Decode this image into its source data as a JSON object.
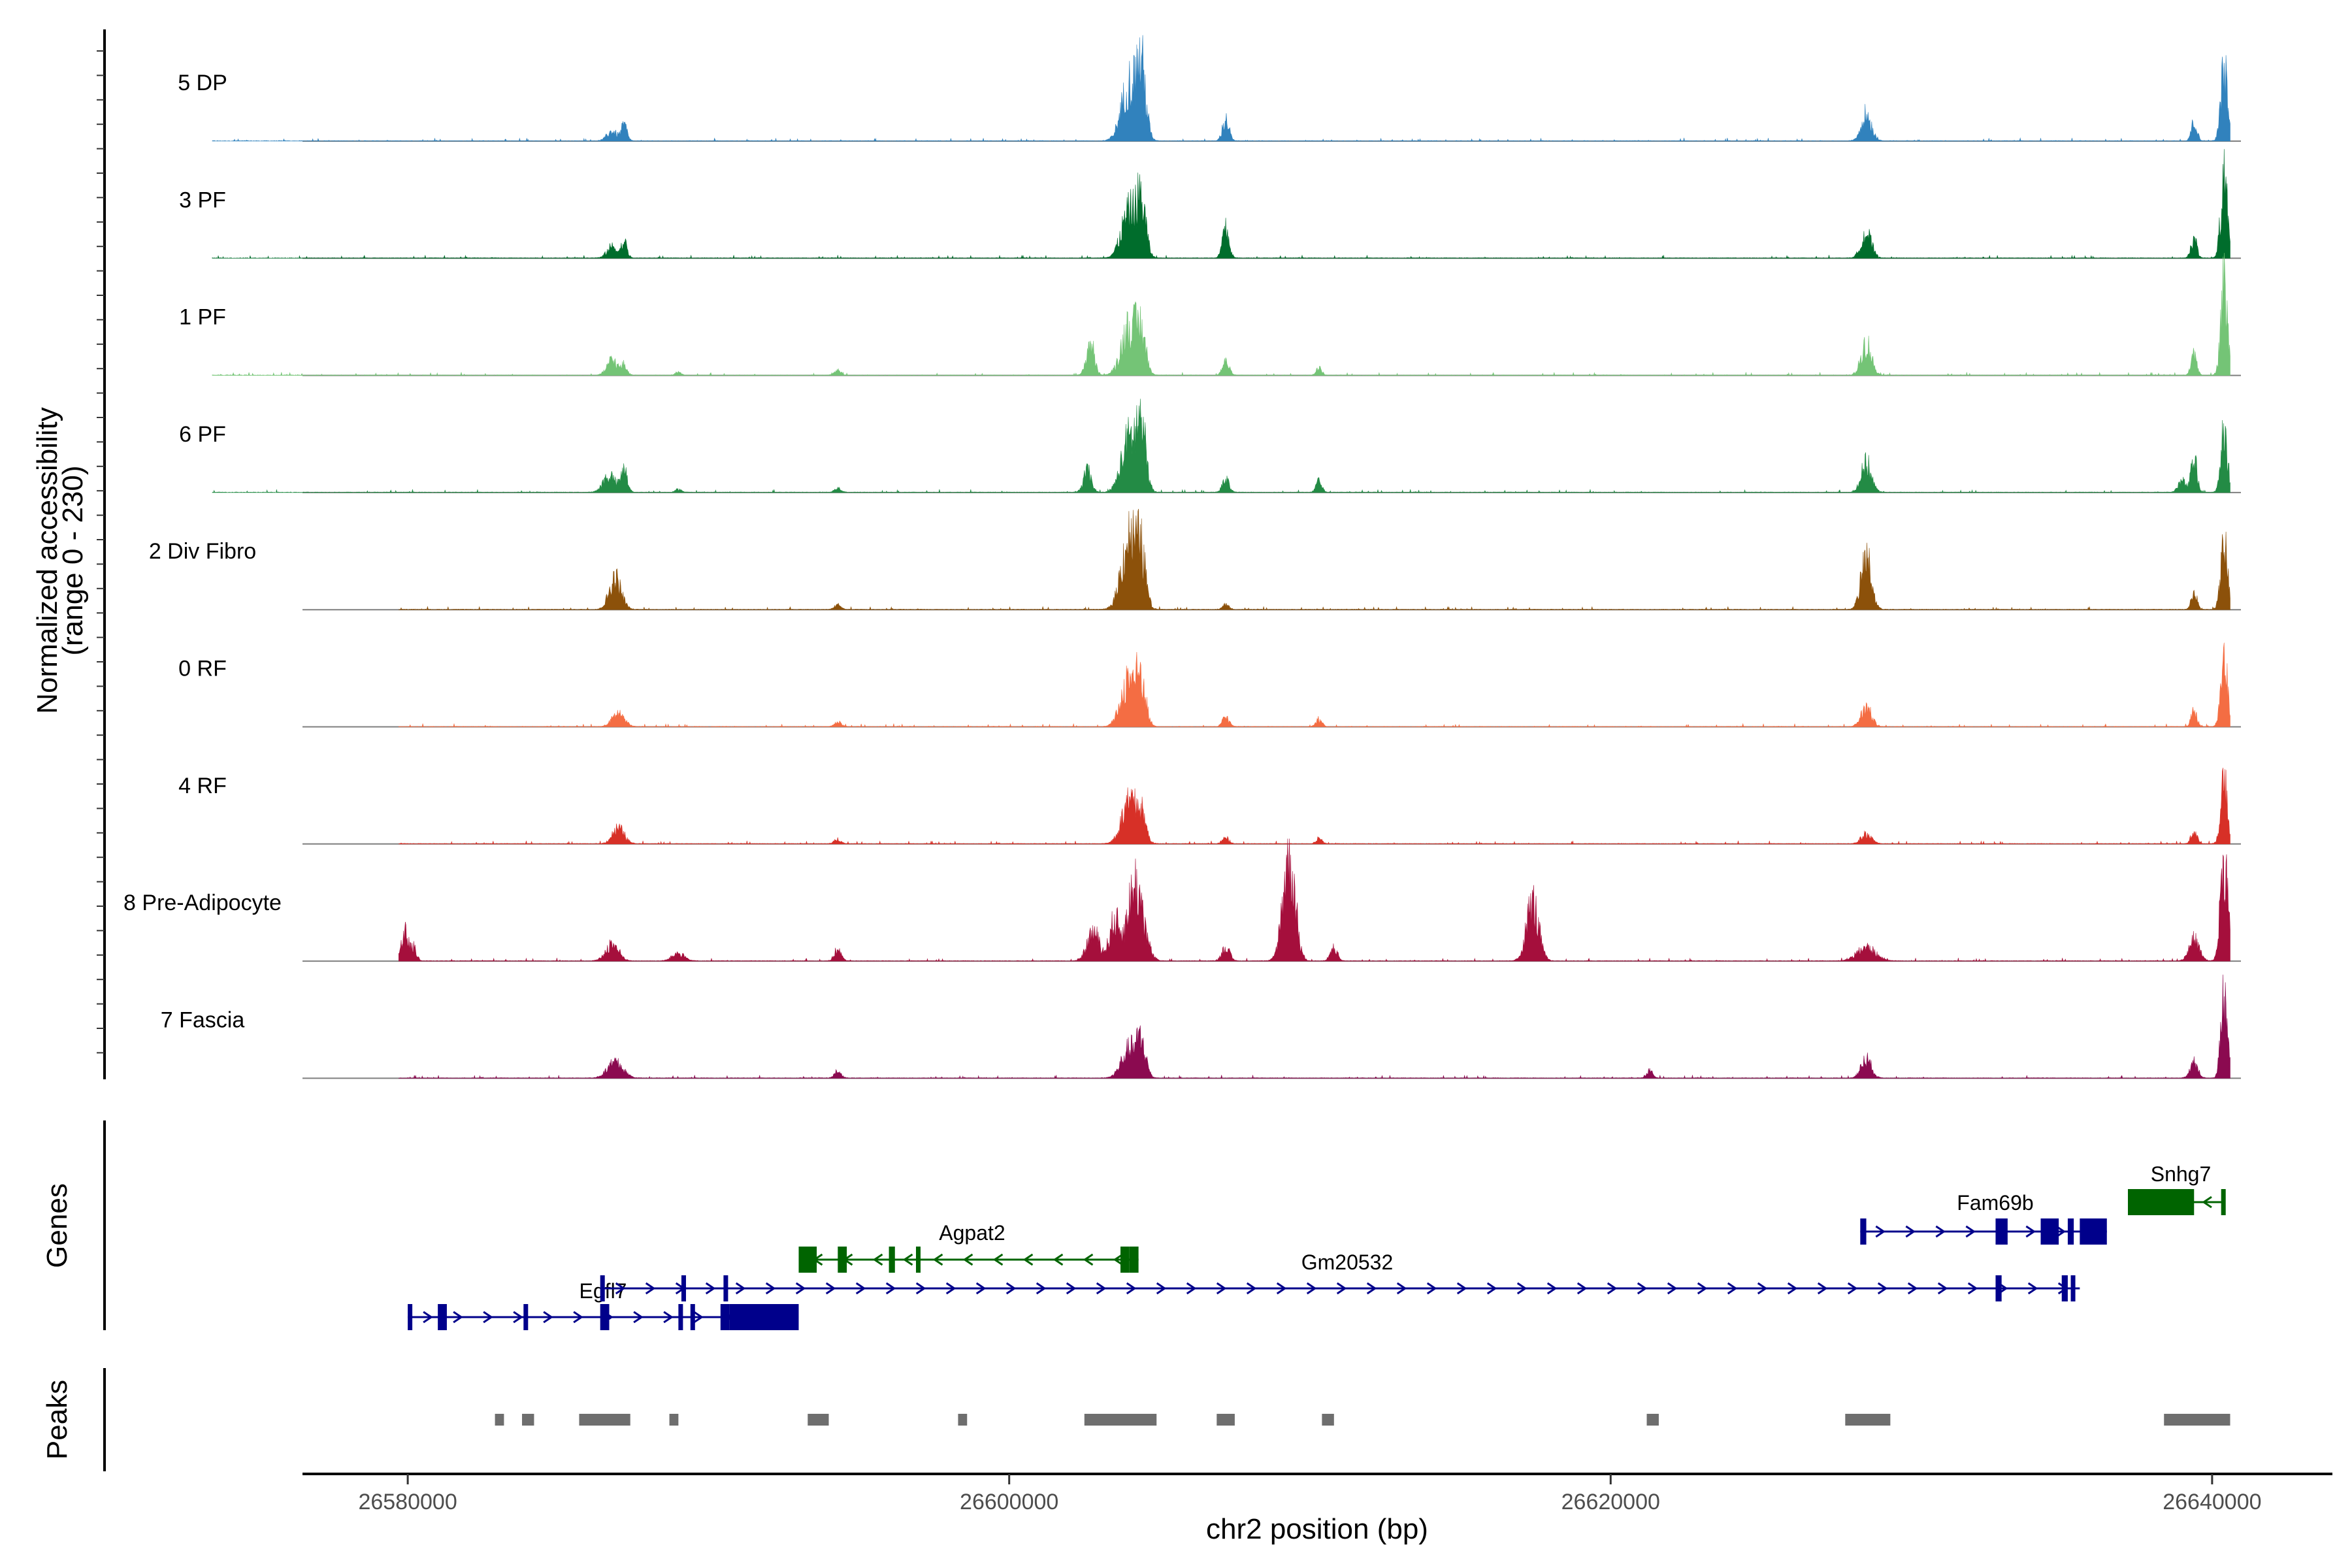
{
  "chart_data": {
    "type": "area",
    "region": {
      "chromosome": "chr2",
      "start": 26576500,
      "end": 26644000
    },
    "xlabel": "chr2 position (bp)",
    "ylabel": [
      "Normalized accessibility",
      "(range 0 - 230)"
    ],
    "y_range": [
      0,
      230
    ],
    "x_ticks": [
      {
        "value": 26580000,
        "label": "26580000"
      },
      {
        "value": 26600000,
        "label": "26600000"
      },
      {
        "value": 26620000,
        "label": "26620000"
      },
      {
        "value": 26640000,
        "label": "26640000"
      }
    ],
    "track_titles": {
      "genes": "Genes",
      "peaks": "Peaks"
    },
    "tracks": [
      {
        "name": "5 DP",
        "color": "#3182bd",
        "start": 26573500,
        "peaks": [
          [
            26586800,
            25,
            170
          ],
          [
            26587200,
            40,
            95
          ],
          [
            26604000,
            150,
            260
          ],
          [
            26604400,
            165,
            150
          ],
          [
            26607200,
            55,
            110
          ],
          [
            26628500,
            70,
            170
          ],
          [
            26639400,
            50,
            95
          ],
          [
            26640400,
            185,
            110
          ]
        ]
      },
      {
        "name": "3 PF",
        "color": "#006d2c",
        "start": 26573500,
        "peaks": [
          [
            26586800,
            30,
            170
          ],
          [
            26587200,
            40,
            95
          ],
          [
            26604000,
            120,
            260
          ],
          [
            26604400,
            125,
            150
          ],
          [
            26607200,
            75,
            110
          ],
          [
            26628500,
            65,
            170
          ],
          [
            26639400,
            50,
            95
          ],
          [
            26640400,
            215,
            110
          ]
        ]
      },
      {
        "name": "1 PF",
        "color": "#74c476",
        "start": 26573500,
        "peaks": [
          [
            26586800,
            40,
            170
          ],
          [
            26587200,
            25,
            95
          ],
          [
            26589000,
            8,
            95
          ],
          [
            26594300,
            12,
            110
          ],
          [
            26602700,
            85,
            130
          ],
          [
            26604000,
            130,
            260
          ],
          [
            26604400,
            90,
            150
          ],
          [
            26607200,
            35,
            110
          ],
          [
            26610300,
            18,
            95
          ],
          [
            26628500,
            85,
            170
          ],
          [
            26639400,
            50,
            95
          ],
          [
            26640400,
            240,
            110
          ]
        ]
      },
      {
        "name": "6 PF",
        "color": "#238b45",
        "start": 26573500,
        "peaks": [
          [
            26586700,
            45,
            200
          ],
          [
            26587200,
            55,
            110
          ],
          [
            26589000,
            8,
            95
          ],
          [
            26594300,
            10,
            110
          ],
          [
            26602600,
            55,
            130
          ],
          [
            26604000,
            140,
            260
          ],
          [
            26604400,
            150,
            150
          ],
          [
            26607200,
            35,
            110
          ],
          [
            26610300,
            30,
            95
          ],
          [
            26628500,
            75,
            170
          ],
          [
            26639000,
            30,
            130
          ],
          [
            26639400,
            90,
            95
          ],
          [
            26640400,
            155,
            110
          ]
        ]
      },
      {
        "name": "2 Div Fibro",
        "color": "#8c510a",
        "start": 26579700,
        "peaks": [
          [
            26586900,
            80,
            200
          ],
          [
            26594300,
            12,
            110
          ],
          [
            26604000,
            190,
            260
          ],
          [
            26604400,
            110,
            150
          ],
          [
            26607200,
            12,
            110
          ],
          [
            26628500,
            135,
            170
          ],
          [
            26639400,
            45,
            95
          ],
          [
            26640400,
            170,
            110
          ]
        ]
      },
      {
        "name": "0 RF",
        "color": "#f46d43",
        "start": 26579700,
        "peaks": [
          [
            26587000,
            35,
            200
          ],
          [
            26594300,
            12,
            110
          ],
          [
            26604000,
            130,
            260
          ],
          [
            26604400,
            95,
            150
          ],
          [
            26607200,
            25,
            110
          ],
          [
            26610300,
            20,
            95
          ],
          [
            26628500,
            50,
            170
          ],
          [
            26639400,
            40,
            95
          ],
          [
            26640400,
            175,
            110
          ]
        ]
      },
      {
        "name": "4 RF",
        "color": "#d73027",
        "start": 26579700,
        "peaks": [
          [
            26587000,
            40,
            200
          ],
          [
            26594300,
            12,
            110
          ],
          [
            26604000,
            105,
            260
          ],
          [
            26604400,
            60,
            150
          ],
          [
            26607200,
            15,
            110
          ],
          [
            26610300,
            15,
            95
          ],
          [
            26628500,
            25,
            170
          ],
          [
            26639400,
            35,
            95
          ],
          [
            26640400,
            155,
            110
          ]
        ]
      },
      {
        "name": "8 Pre-Adipocyte",
        "color": "#a50f3c",
        "start": 26579700,
        "peaks": [
          [
            26579900,
            80,
            110
          ],
          [
            26580200,
            35,
            95
          ],
          [
            26586800,
            45,
            210
          ],
          [
            26589000,
            20,
            200
          ],
          [
            26594300,
            30,
            110
          ],
          [
            26602800,
            75,
            200
          ],
          [
            26603500,
            100,
            170
          ],
          [
            26604200,
            200,
            260
          ],
          [
            26607200,
            35,
            130
          ],
          [
            26609300,
            285,
            200
          ],
          [
            26610800,
            35,
            110
          ],
          [
            26617400,
            150,
            200
          ],
          [
            26628500,
            35,
            300
          ],
          [
            26639400,
            55,
            170
          ],
          [
            26640400,
            275,
            120
          ]
        ]
      },
      {
        "name": "7 Fascia",
        "color": "#8b0a50",
        "start": 26579700,
        "peaks": [
          [
            26586900,
            40,
            260
          ],
          [
            26594300,
            18,
            110
          ],
          [
            26604000,
            75,
            260
          ],
          [
            26604400,
            80,
            150
          ],
          [
            26621300,
            20,
            95
          ],
          [
            26628500,
            50,
            170
          ],
          [
            26639400,
            40,
            130
          ],
          [
            26640400,
            200,
            110
          ]
        ]
      }
    ],
    "genes": [
      {
        "name": "Egfl7",
        "strand": "+",
        "color": "#00008b",
        "row": 3,
        "start": 26580000,
        "end": 26593000,
        "exons": [
          [
            26580000,
            26580100
          ],
          [
            26581000,
            26581300
          ],
          [
            26583850,
            26583950
          ],
          [
            26586400,
            26586700
          ],
          [
            26589000,
            26589100
          ],
          [
            26589400,
            26589500
          ],
          [
            26590400,
            26590700
          ],
          [
            26590700,
            26593000
          ]
        ]
      },
      {
        "name": "Gm20532",
        "strand": "+",
        "color": "#00008b",
        "row": 2,
        "start": 26586400,
        "end": 26635600,
        "exons": [
          [
            26586400,
            26586550
          ],
          [
            26589100,
            26589200
          ],
          [
            26590500,
            26590600
          ],
          [
            26632800,
            26633000
          ],
          [
            26635000,
            26635200
          ],
          [
            26635300,
            26635400
          ]
        ]
      },
      {
        "name": "Agpat2",
        "strand": "-",
        "color": "#006400",
        "row": 1,
        "start": 26593000,
        "end": 26604300,
        "exons": [
          [
            26593000,
            26593600
          ],
          [
            26594300,
            26594600
          ],
          [
            26596000,
            26596200
          ],
          [
            26596900,
            26597000
          ],
          [
            26603700,
            26604000
          ],
          [
            26604000,
            26604300
          ]
        ]
      },
      {
        "name": "Fam69b",
        "strand": "+",
        "color": "#00008b",
        "row": 0,
        "start": 26628300,
        "end": 26636500,
        "exons": [
          [
            26628300,
            26628500
          ],
          [
            26632800,
            26633200
          ],
          [
            26634300,
            26634900
          ],
          [
            26635200,
            26635400
          ],
          [
            26635600,
            26636500
          ]
        ]
      },
      {
        "name": "Snhg7",
        "strand": "-",
        "color": "#006400",
        "row": -1,
        "start": 26637200,
        "end": 26640400,
        "exons": [
          [
            26637200,
            26639400
          ],
          [
            26640300,
            26640400
          ]
        ]
      }
    ],
    "peak_regions": [
      [
        26582900,
        26583200
      ],
      [
        26583800,
        26584200
      ],
      [
        26585700,
        26587400
      ],
      [
        26588700,
        26589000
      ],
      [
        26593300,
        26594000
      ],
      [
        26598300,
        26598600
      ],
      [
        26602500,
        26604900
      ],
      [
        26606900,
        26607500
      ],
      [
        26610400,
        26610800
      ],
      [
        26621200,
        26621600
      ],
      [
        26627800,
        26629300
      ],
      [
        26638400,
        26640600
      ]
    ]
  }
}
